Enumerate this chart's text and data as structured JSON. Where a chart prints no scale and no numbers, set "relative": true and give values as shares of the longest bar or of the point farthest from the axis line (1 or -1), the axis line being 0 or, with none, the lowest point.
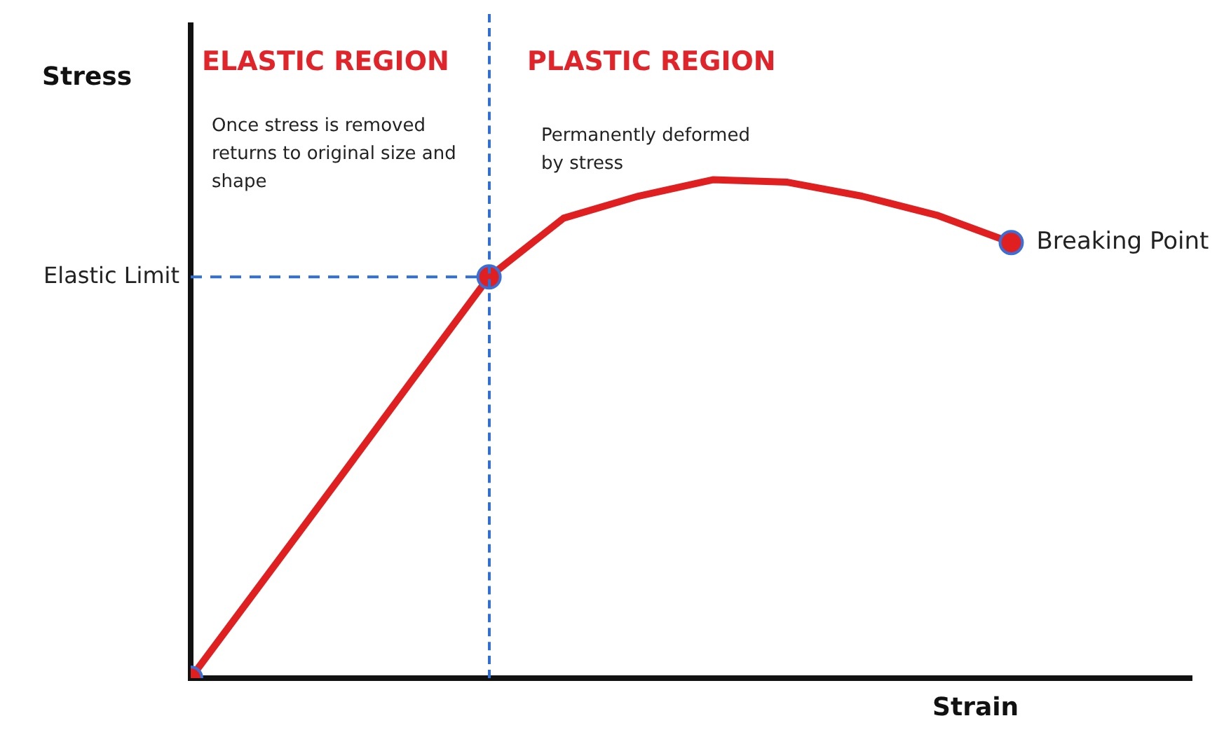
{
  "chart_data": {
    "type": "line",
    "relative": true,
    "xlabel": "Strain",
    "ylabel": "Stress",
    "legend": false,
    "grid": false,
    "categories": [
      null,
      null,
      null,
      null,
      null,
      null,
      null,
      null,
      null,
      null,
      null,
      null
    ],
    "series": [
      {
        "color": "#e02020",
        "values": [
          0,
          0.201,
          0.402,
          0.604,
          0.805,
          0.923,
          0.967,
          1,
          0.995,
          0.967,
          0.929,
          0.874
        ]
      }
    ],
    "ref_lines": [
      {
        "axis": "y",
        "value": 0.805,
        "label": "Elastic Limit",
        "color": "#2f6fd6",
        "line_style": "dashed"
      }
    ],
    "annotations": [
      "ELASTIC REGION",
      "PLASTIC REGION",
      "Once stress is removed returns to original size and shape",
      "Permanently deformed by stress",
      "Breaking Point"
    ]
  }
}
